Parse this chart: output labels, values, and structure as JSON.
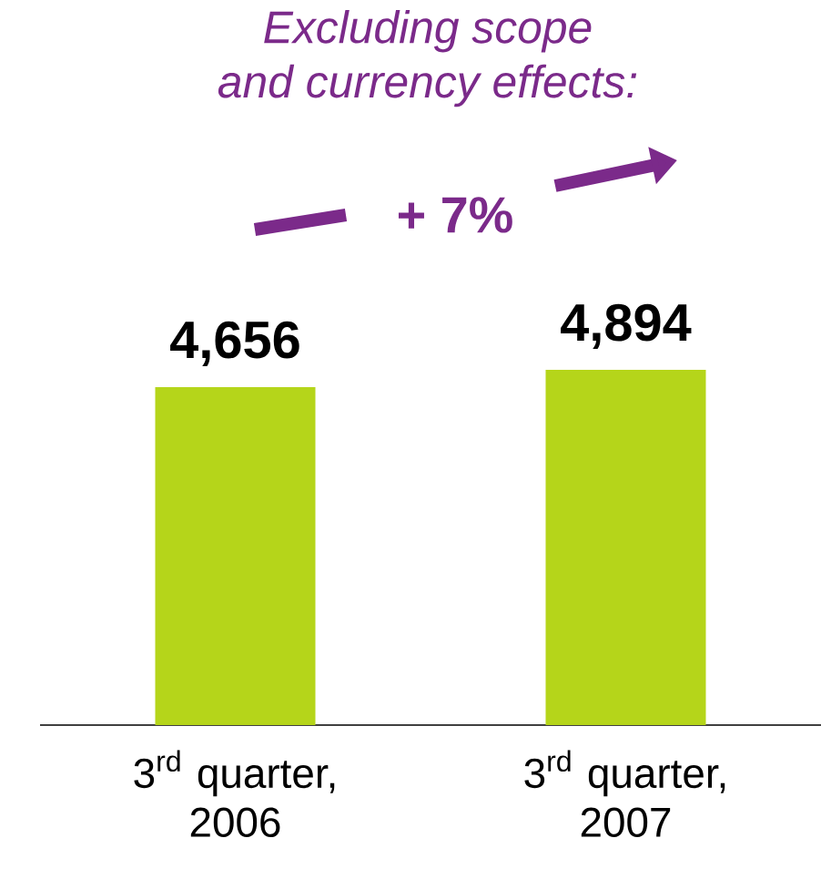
{
  "chart_data": {
    "type": "bar",
    "title": "Excluding scope and currency effects:",
    "annotations": [
      "+ 7%"
    ],
    "categories": [
      "3$^{rd}$ quarter, 2006",
      "3$^{rd}$ quarter, 2007"
    ],
    "values": [
      4656,
      4894
    ],
    "value_labels": [
      "4,656",
      "4,894"
    ],
    "color": "#b5d51a"
  }
}
